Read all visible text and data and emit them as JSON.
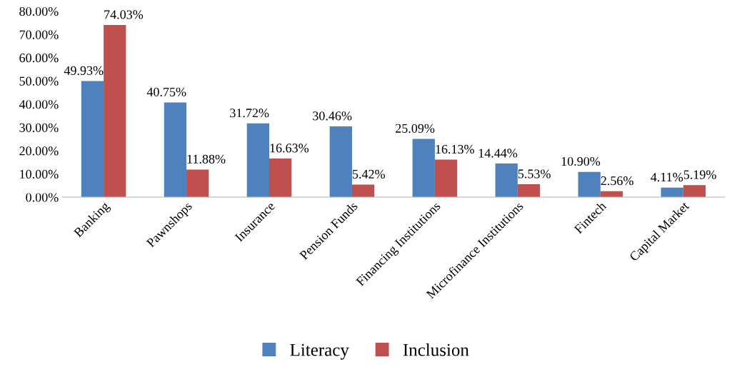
{
  "chart_data": {
    "type": "bar",
    "categories": [
      "Banking",
      "Pawnshops",
      "Insurance",
      "Pension Funds",
      "Financing Institutions",
      "Microfinance Institutions",
      "Fintech",
      "Capital Market"
    ],
    "series": [
      {
        "name": "Literacy",
        "color": "#4f81bd",
        "values": [
          49.93,
          40.75,
          31.72,
          30.46,
          25.09,
          14.44,
          10.9,
          4.11
        ],
        "value_labels": [
          "49.93%",
          "40.75%",
          "31.72%",
          "30.46%",
          "25.09%",
          "14.44%",
          "10.90%",
          "4.11%"
        ]
      },
      {
        "name": "Inclusion",
        "color": "#c0504d",
        "values": [
          74.03,
          11.88,
          16.63,
          5.42,
          16.13,
          5.53,
          2.56,
          5.19
        ],
        "value_labels": [
          "74.03%",
          "11.88%",
          "16.63%",
          "5.42%",
          "16.13%",
          "5.53%",
          "2.56%",
          "5.19%"
        ]
      }
    ],
    "ylim": [
      0,
      80
    ],
    "yticks": [
      {
        "value": 0,
        "label": "0.00%"
      },
      {
        "value": 10,
        "label": "10.00%"
      },
      {
        "value": 20,
        "label": "20.00%"
      },
      {
        "value": 30,
        "label": "30.00%"
      },
      {
        "value": 40,
        "label": "40.00%"
      },
      {
        "value": 50,
        "label": "50.00%"
      },
      {
        "value": 60,
        "label": "60.00%"
      },
      {
        "value": 70,
        "label": "70.00%"
      },
      {
        "value": 80,
        "label": "80.00%"
      }
    ],
    "grid": false,
    "legend": "bottom"
  }
}
